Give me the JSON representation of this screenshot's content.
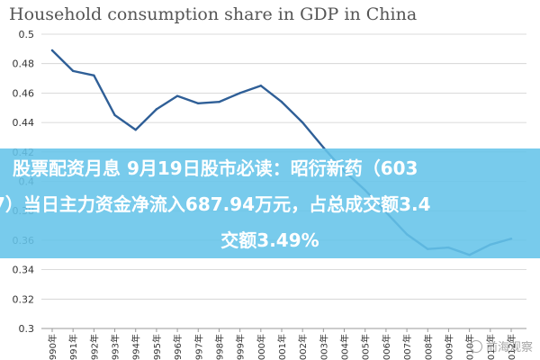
{
  "banner": {
    "line1": "股票配资月息 9月19日股市必读：昭衍新药（603",
    "line2": "7）当日主力资金净流入687.94万元，占总成交额3.4",
    "line3": "交额3.49%"
  },
  "watermark": {
    "text": "前海观察",
    "icon": "circle-icon"
  },
  "chart_data": {
    "type": "line",
    "title": "Household consumption share in GDP in China",
    "xlabel": "",
    "ylabel": "",
    "ylim": [
      0.3,
      0.5
    ],
    "yticks": [
      "0.3",
      "0.32",
      "0.34",
      "0.36",
      "0.38",
      "0.4",
      "0.42",
      "0.44",
      "0.46",
      "0.48",
      "0.5"
    ],
    "categories": [
      "1990年",
      "1991年",
      "1992年",
      "1993年",
      "1994年",
      "1995年",
      "1996年",
      "1997年",
      "1998年",
      "1999年",
      "2000年",
      "2001年",
      "2002年",
      "2003年",
      "2004年",
      "2005年",
      "2006年",
      "2007年",
      "2008年",
      "2009年",
      "2010年",
      "2011年",
      "2012年"
    ],
    "series": [
      {
        "values": [
          0.489,
          0.475,
          0.472,
          0.445,
          0.435,
          0.449,
          0.458,
          0.453,
          0.454,
          0.46,
          0.465,
          0.454,
          0.44,
          0.423,
          0.407,
          0.394,
          0.379,
          0.364,
          0.354,
          0.355,
          0.35,
          0.357,
          0.361
        ]
      }
    ],
    "grid": true,
    "colors": {
      "line": "#2f5f97",
      "banner": "#65c4e9"
    }
  }
}
